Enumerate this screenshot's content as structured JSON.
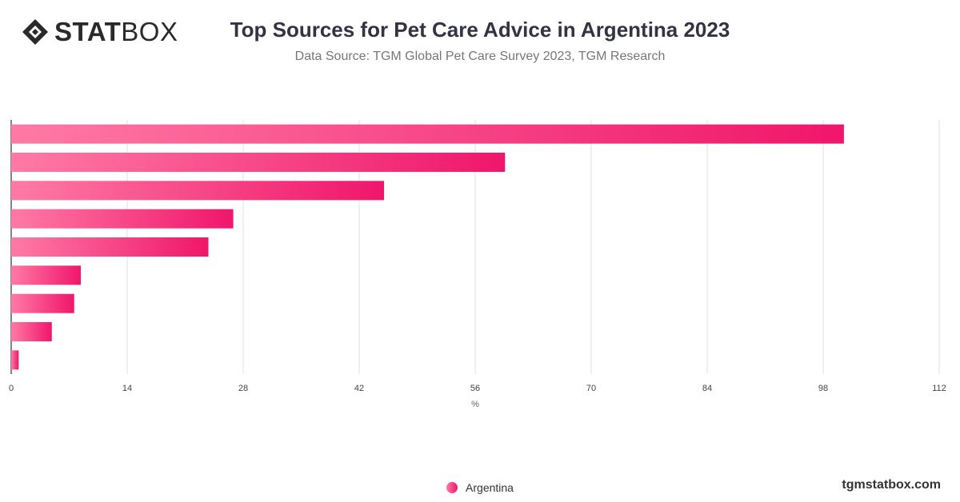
{
  "brand": {
    "logo_bold": "STAT",
    "logo_thin": "BOX",
    "website": "tgmstatbox.com"
  },
  "header": {
    "title": "Top Sources for Pet Care Advice in Argentina 2023",
    "subtitle": "Data Source: TGM Global Pet Care Survey 2023, TGM Research"
  },
  "colors": {
    "bar_start": "#ff7aa5",
    "bar_end": "#f0166b",
    "grid": "#e0e0e0",
    "axis": "#333333"
  },
  "chart_data": {
    "type": "bar",
    "orientation": "horizontal",
    "categories": [
      "",
      "",
      "",
      "",
      "",
      "",
      "",
      "",
      ""
    ],
    "series": [
      {
        "name": "Argentina",
        "values": [
          100.5,
          59.6,
          45.0,
          26.8,
          23.8,
          8.4,
          7.6,
          4.9,
          0.9
        ]
      }
    ],
    "xlabel": "%",
    "xlim": [
      0,
      112
    ],
    "xticks": [
      0,
      14,
      28,
      42,
      56,
      70,
      84,
      98,
      112
    ],
    "grid": true,
    "legend": "bottom-center"
  }
}
